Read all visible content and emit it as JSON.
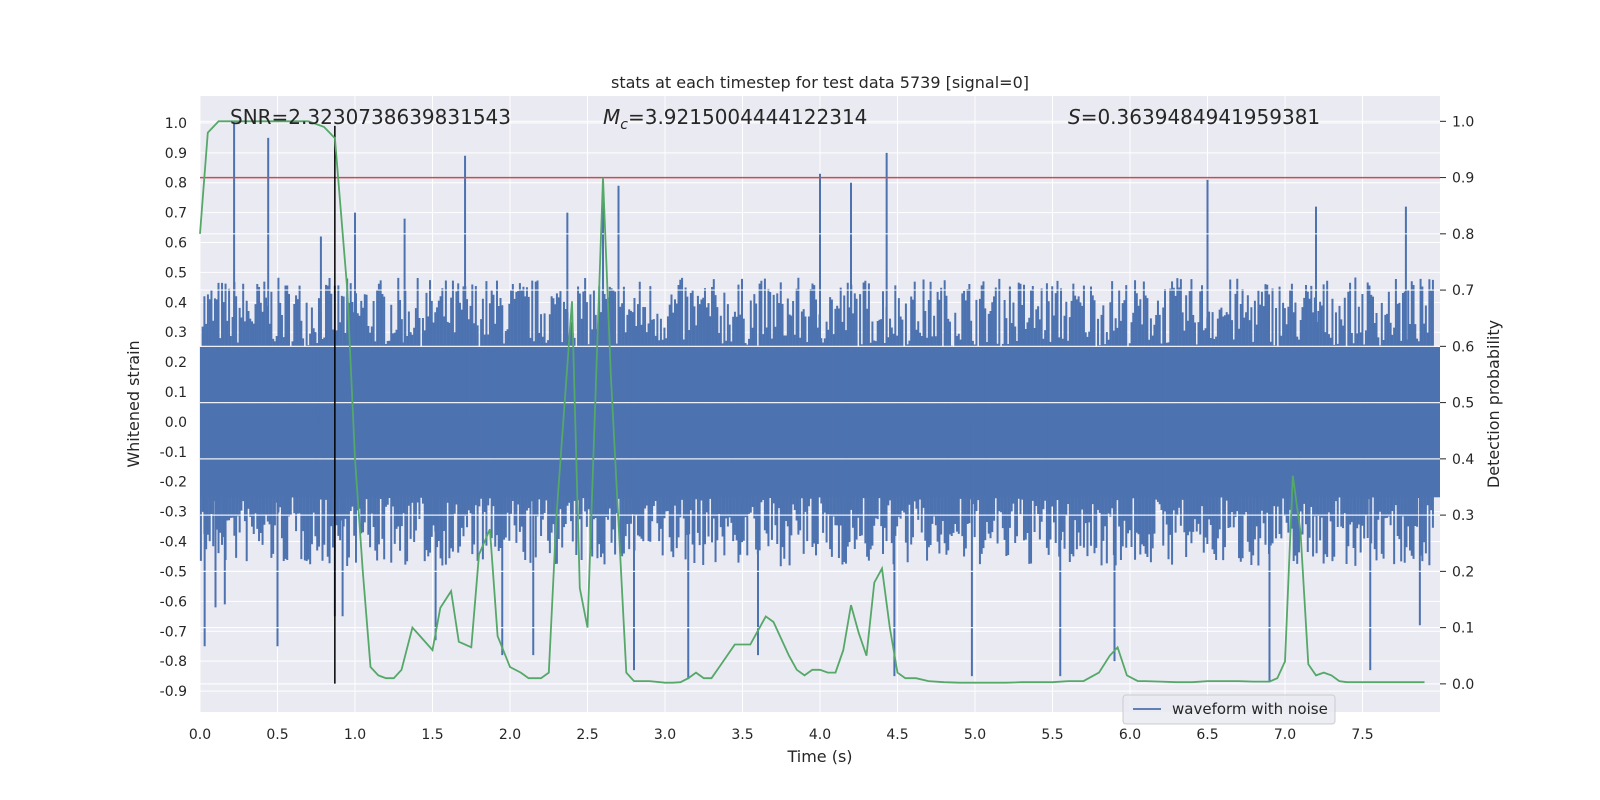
{
  "chart_data": {
    "type": "line",
    "title": "stats at each timestep for test data 5739 [signal=0]",
    "xlabel": "Time (s)",
    "ylabel_left": "Whitened strain",
    "ylabel_right": "Detection probability",
    "xlim": [
      0,
      8
    ],
    "ylim_left": [
      -0.97,
      1.09
    ],
    "ylim_right": [
      -0.05,
      1.045
    ],
    "x_ticks": [
      "0.0",
      "0.5",
      "1.0",
      "1.5",
      "2.0",
      "2.5",
      "3.0",
      "3.5",
      "4.0",
      "4.5",
      "5.0",
      "5.5",
      "6.0",
      "6.5",
      "7.0",
      "7.5"
    ],
    "y_ticks_left": [
      "-0.9",
      "-0.8",
      "-0.7",
      "-0.6",
      "-0.5",
      "-0.4",
      "-0.3",
      "-0.2",
      "-0.1",
      "0.0",
      "0.1",
      "0.2",
      "0.3",
      "0.4",
      "0.5",
      "0.6",
      "0.7",
      "0.8",
      "0.9",
      "1.0"
    ],
    "y_ticks_right": [
      "0.0",
      "0.1",
      "0.2",
      "0.3",
      "0.4",
      "0.5",
      "0.6",
      "0.7",
      "0.8",
      "0.9",
      "1.0"
    ],
    "grid": true,
    "legend_position": "lower-right",
    "annotations": {
      "snr": "SNR=2.3230738639831543",
      "mc_symbol": "M",
      "mc_sub": "c",
      "mc_value": "=3.9215004444122314",
      "s_symbol": "S",
      "s_value": "=0.3639484941959381"
    },
    "threshold_probability": 0.9,
    "marker_line": {
      "x": 0.87,
      "y_from": -0.875,
      "y_to": 0.99
    },
    "waveform": {
      "name": "waveform with noise",
      "color": "#4c72b0",
      "envelope_max": 0.42,
      "envelope_min": -0.42,
      "spikes": [
        [
          0.03,
          -0.75
        ],
        [
          0.1,
          -0.62
        ],
        [
          0.16,
          -0.61
        ],
        [
          0.22,
          1.0
        ],
        [
          0.44,
          0.95
        ],
        [
          0.5,
          -0.75
        ],
        [
          0.78,
          0.62
        ],
        [
          0.87,
          -0.65
        ],
        [
          0.92,
          -0.65
        ],
        [
          1.0,
          0.7
        ],
        [
          1.32,
          0.68
        ],
        [
          1.52,
          -0.73
        ],
        [
          1.71,
          0.89
        ],
        [
          1.95,
          -0.78
        ],
        [
          2.15,
          -0.78
        ],
        [
          2.37,
          0.7
        ],
        [
          2.6,
          0.76
        ],
        [
          2.7,
          0.79
        ],
        [
          2.8,
          -0.83
        ],
        [
          3.15,
          -0.86
        ],
        [
          3.6,
          -0.78
        ],
        [
          4.0,
          0.83
        ],
        [
          4.2,
          0.8
        ],
        [
          4.43,
          0.9
        ],
        [
          4.48,
          -0.85
        ],
        [
          4.98,
          -0.85
        ],
        [
          5.55,
          -0.85
        ],
        [
          5.9,
          -0.8
        ],
        [
          6.5,
          0.81
        ],
        [
          6.9,
          -0.87
        ],
        [
          7.2,
          0.72
        ],
        [
          7.55,
          -0.83
        ],
        [
          7.78,
          0.72
        ],
        [
          7.87,
          -0.68
        ]
      ]
    },
    "probability": {
      "color": "#55a868",
      "x": [
        0.0,
        0.05,
        0.12,
        0.2,
        0.3,
        0.5,
        0.7,
        0.8,
        0.87,
        0.95,
        1.0,
        1.05,
        1.1,
        1.15,
        1.2,
        1.25,
        1.3,
        1.37,
        1.42,
        1.5,
        1.55,
        1.62,
        1.67,
        1.75,
        1.8,
        1.87,
        1.92,
        2.0,
        2.07,
        2.12,
        2.2,
        2.25,
        2.3,
        2.4,
        2.45,
        2.5,
        2.6,
        2.65,
        2.75,
        2.8,
        2.9,
        3.0,
        3.05,
        3.1,
        3.15,
        3.2,
        3.25,
        3.3,
        3.35,
        3.45,
        3.55,
        3.65,
        3.7,
        3.8,
        3.85,
        3.9,
        3.95,
        4.0,
        4.05,
        4.1,
        4.15,
        4.2,
        4.25,
        4.3,
        4.35,
        4.4,
        4.45,
        4.5,
        4.55,
        4.62,
        4.7,
        4.8,
        4.9,
        5.0,
        5.1,
        5.2,
        5.3,
        5.4,
        5.5,
        5.6,
        5.7,
        5.8,
        5.87,
        5.92,
        5.98,
        6.05,
        6.1,
        6.2,
        6.3,
        6.4,
        6.5,
        6.6,
        6.7,
        6.8,
        6.9,
        6.95,
        7.0,
        7.05,
        7.1,
        7.15,
        7.2,
        7.25,
        7.3,
        7.35,
        7.4,
        7.45,
        7.5,
        7.6,
        7.7,
        7.8,
        7.9
      ],
      "y": [
        0.8,
        0.98,
        1.0,
        1.0,
        1.0,
        1.0,
        1.0,
        0.99,
        0.97,
        0.7,
        0.4,
        0.2,
        0.03,
        0.015,
        0.01,
        0.01,
        0.025,
        0.1,
        0.085,
        0.06,
        0.135,
        0.165,
        0.075,
        0.065,
        0.23,
        0.275,
        0.085,
        0.03,
        0.02,
        0.01,
        0.01,
        0.02,
        0.3,
        0.68,
        0.17,
        0.1,
        0.9,
        0.55,
        0.02,
        0.005,
        0.005,
        0.002,
        0.002,
        0.003,
        0.01,
        0.02,
        0.01,
        0.01,
        0.03,
        0.07,
        0.07,
        0.12,
        0.11,
        0.05,
        0.025,
        0.015,
        0.025,
        0.025,
        0.02,
        0.02,
        0.06,
        0.14,
        0.09,
        0.05,
        0.18,
        0.205,
        0.1,
        0.02,
        0.01,
        0.01,
        0.005,
        0.003,
        0.002,
        0.002,
        0.002,
        0.002,
        0.003,
        0.003,
        0.003,
        0.005,
        0.005,
        0.02,
        0.05,
        0.065,
        0.015,
        0.005,
        0.005,
        0.004,
        0.003,
        0.003,
        0.005,
        0.005,
        0.005,
        0.004,
        0.004,
        0.01,
        0.04,
        0.37,
        0.27,
        0.035,
        0.015,
        0.02,
        0.015,
        0.005,
        0.003,
        0.003,
        0.003,
        0.003,
        0.003,
        0.003,
        0.003
      ]
    }
  }
}
